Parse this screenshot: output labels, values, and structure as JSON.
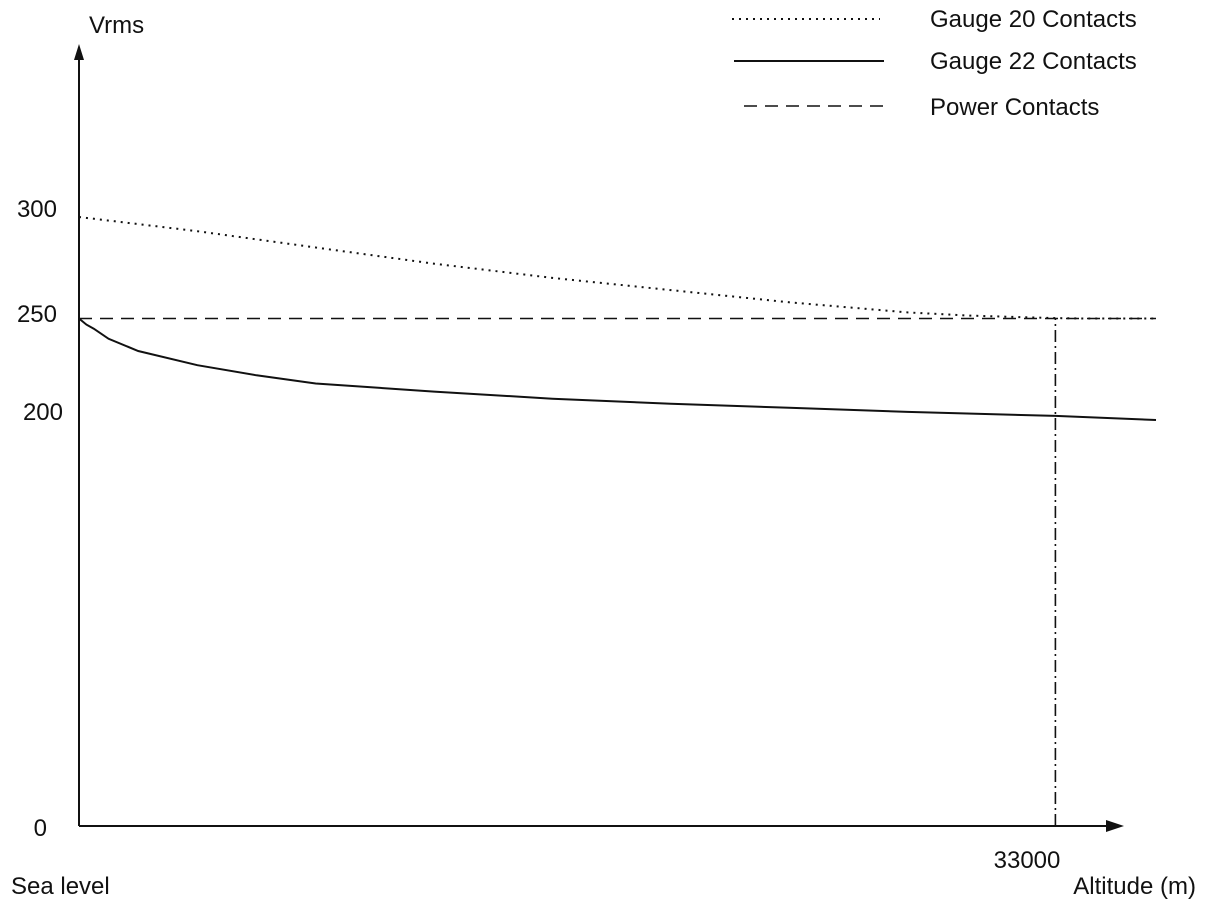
{
  "chart_data": {
    "type": "line",
    "ylabel": "Vrms",
    "xlabel": "Altitude (m)",
    "x_origin_label": "Sea level",
    "xlim": [
      0,
      36400
    ],
    "ylim": [
      0,
      300
    ],
    "y_ticks": [
      {
        "value": 0,
        "label": "0"
      },
      {
        "value": 200,
        "label": "200"
      },
      {
        "value": 250,
        "label": "250"
      },
      {
        "value": 300,
        "label": "300"
      }
    ],
    "x_ticks": [
      {
        "value": 33000,
        "label": "33000"
      }
    ],
    "grid": false,
    "legend_position": "top-right",
    "series": [
      {
        "name": "Gauge 20 Contacts",
        "style": "dotted",
        "color": "#111111",
        "x": [
          0,
          4000,
          8000,
          12000,
          16000,
          20000,
          24000,
          28000,
          30000,
          32000,
          33000,
          34000,
          36400
        ],
        "y": [
          300,
          293,
          285,
          277,
          270,
          264,
          258,
          253,
          251.5,
          250.6,
          250.2,
          250,
          250
        ]
      },
      {
        "name": "Gauge 22 Contacts",
        "style": "solid",
        "color": "#111111",
        "x": [
          0,
          250,
          500,
          1000,
          2000,
          4000,
          6000,
          8000,
          12000,
          16000,
          20000,
          24000,
          28000,
          33000,
          36400
        ],
        "y": [
          250,
          247,
          245,
          240,
          234,
          227,
          222,
          218,
          214,
          210.5,
          208,
          206,
          204,
          202,
          200
        ]
      },
      {
        "name": "Power Contacts",
        "style": "dashed",
        "color": "#111111",
        "x": [
          0,
          36400
        ],
        "y": [
          250,
          250
        ]
      }
    ],
    "annotations": [
      {
        "type": "vertical-line",
        "style": "dash-dot",
        "x": 33000,
        "y_from": 0,
        "y_to": 250
      }
    ]
  }
}
